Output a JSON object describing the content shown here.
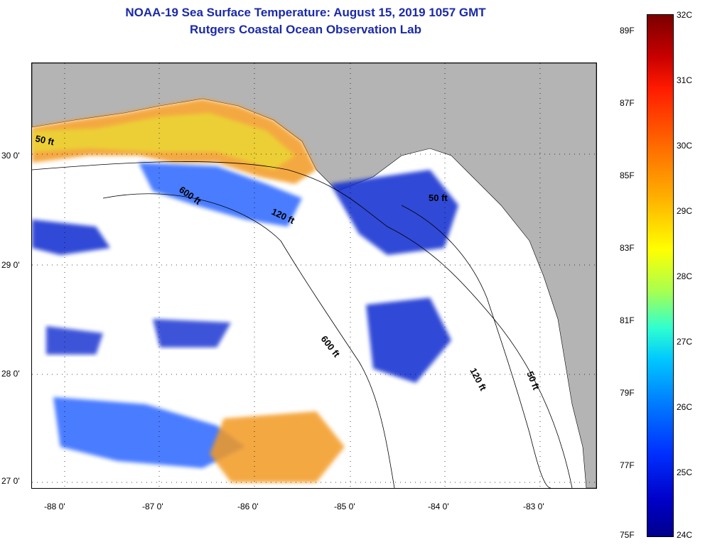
{
  "header": {
    "title": "NOAA-19 Sea Surface Temperature:  August 15, 2019 1057 GMT",
    "subtitle": "Rutgers Coastal Ocean Observation Lab"
  },
  "map": {
    "lat_ticks": [
      "30 0'",
      "29 0'",
      "28 0'",
      "27 0'"
    ],
    "lon_ticks": [
      "-88 0'",
      "-87 0'",
      "-86 0'",
      "-85 0'",
      "-84 0'",
      "-83 0'"
    ],
    "contour_labels": [
      "50 ft",
      "600 ft",
      "120 ft",
      "50 ft",
      "600 ft",
      "120 ft",
      "50 ft"
    ],
    "colors": {
      "land": "#b4b4b4",
      "cloud": "#ffffff"
    }
  },
  "colorbar": {
    "celsius": [
      "32C",
      "31C",
      "30C",
      "29C",
      "28C",
      "27C",
      "26C",
      "25C",
      "24C"
    ],
    "fahrenheit": [
      "89F",
      "87F",
      "85F",
      "83F",
      "81F",
      "79F",
      "77F",
      "75F"
    ]
  }
}
